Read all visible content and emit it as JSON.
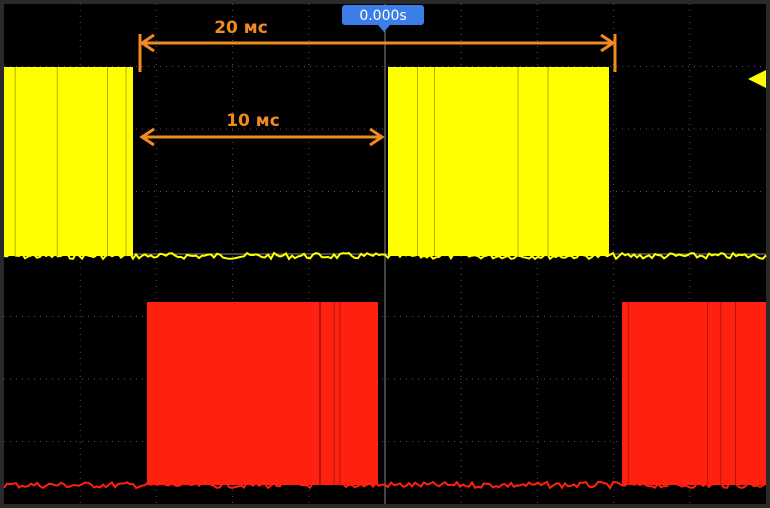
{
  "header": {
    "time_offset": "0.000s"
  },
  "annotations": [
    {
      "label": "20 мс"
    },
    {
      "label": "10 мс"
    }
  ]
}
